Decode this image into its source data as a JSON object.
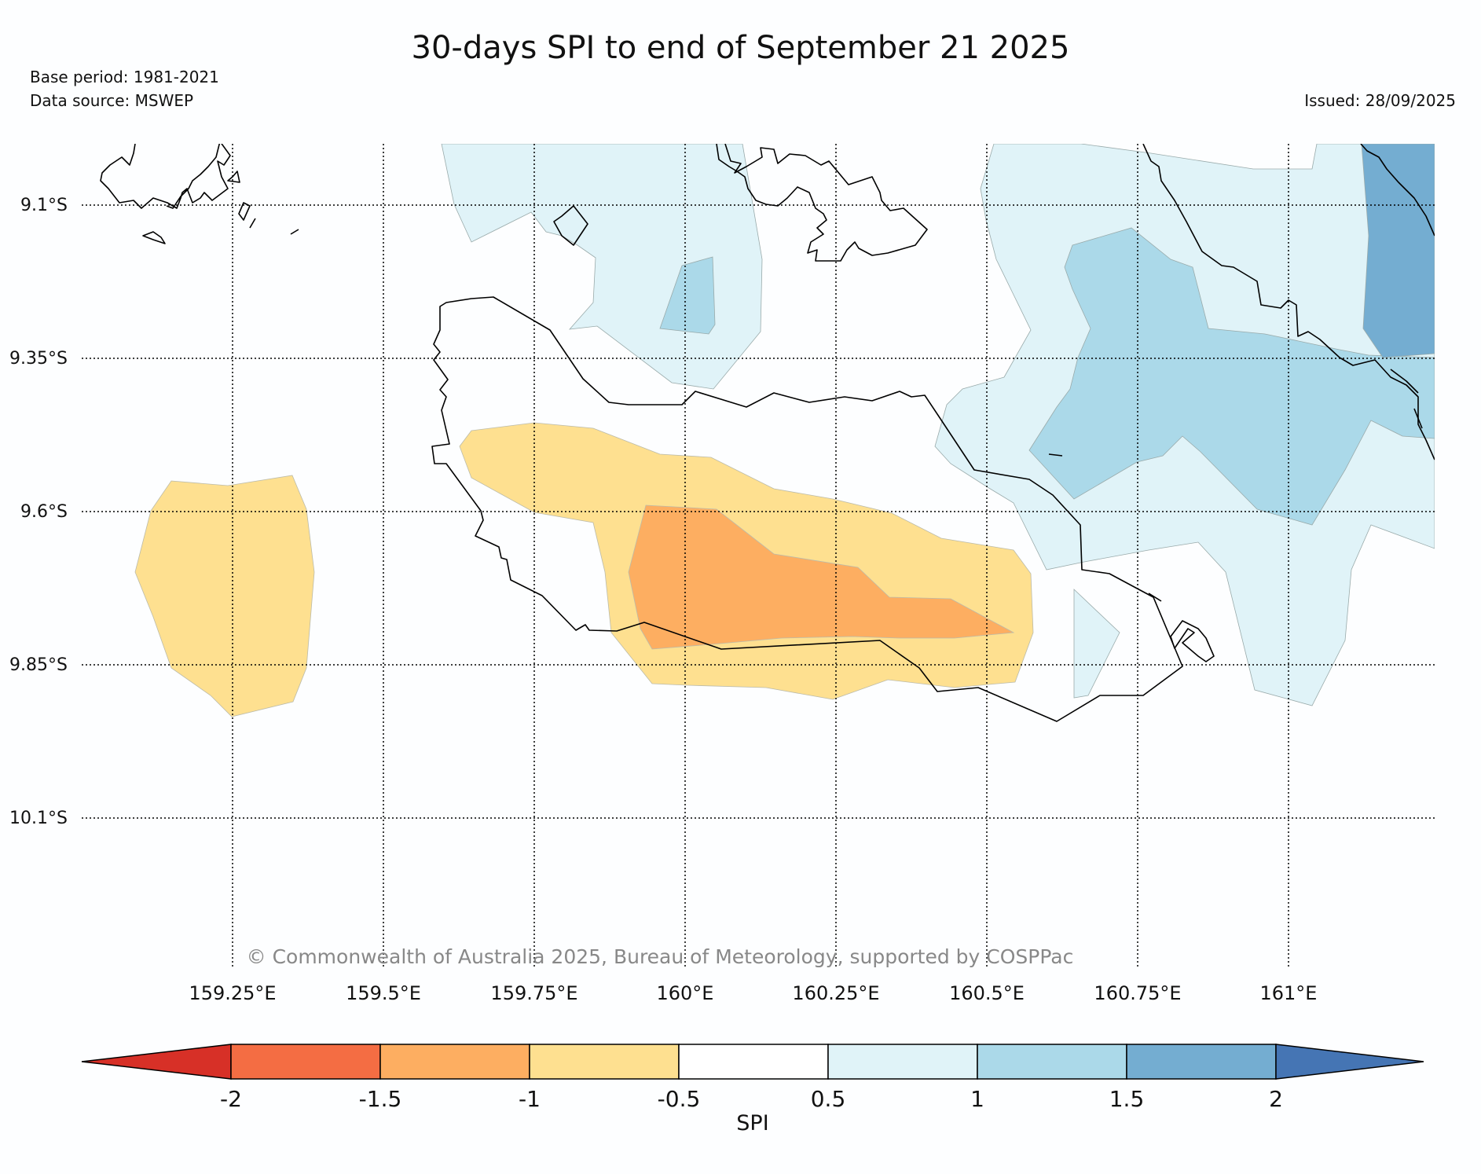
{
  "title": "30-days SPI to end of September 21 2025",
  "base_period": "Base period: 1981-2021",
  "data_source": "Data source: MSWEP",
  "issued": "Issued: 28/09/2025",
  "copyright": "© Commonwealth of Australia 2025, Bureau of Meteorology, supported by COSPPac",
  "lat_labels": [
    "9.1°S",
    "9.35°S",
    "9.6°S",
    "9.85°S",
    "10.1°S"
  ],
  "lon_labels": [
    "159.25°E",
    "159.5°E",
    "159.75°E",
    "160°E",
    "160.25°E",
    "160.5°E",
    "160.75°E",
    "161°E"
  ],
  "colorbar": {
    "label": "SPI",
    "ticks": [
      "-2",
      "-1.5",
      "-1",
      "-0.5",
      "0.5",
      "1",
      "1.5",
      "2"
    ],
    "colors": {
      "lt_-2": "#d73027",
      "-2_-1.5": "#f46d43",
      "-1.5_-1": "#fdae61",
      "-1_-0.5": "#fee090",
      "-0.5_0.5": "#ffffff",
      "0.5_1": "#e0f3f8",
      "1_1.5": "#abd9e9",
      "1.5_2": "#74add1",
      "gt_2": "#4575b4"
    }
  }
}
